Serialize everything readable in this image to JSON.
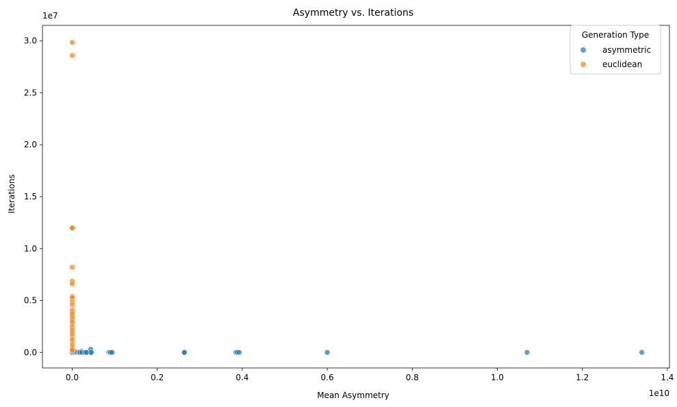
{
  "chart_data": {
    "type": "scatter",
    "title": "Asymmetry vs. Iterations",
    "xlabel": "Mean Asymmetry",
    "ylabel": "Iterations",
    "x_offset_label": "1e10",
    "y_offset_label": "1e7",
    "x_scale": 10000000000,
    "y_scale": 10000000,
    "xlim": [
      -0.07,
      1.405
    ],
    "ylim": [
      -0.15,
      3.15
    ],
    "x_ticks": [
      0.0,
      0.2,
      0.4,
      0.6,
      0.8,
      1.0,
      1.2,
      1.4
    ],
    "x_tick_labels": [
      "0.0",
      "0.2",
      "0.4",
      "0.6",
      "0.8",
      "1.0",
      "1.2",
      "1.4"
    ],
    "y_ticks": [
      0.0,
      0.5,
      1.0,
      1.5,
      2.0,
      2.5,
      3.0
    ],
    "y_tick_labels": [
      "0.0",
      "0.5",
      "1.0",
      "1.5",
      "2.0",
      "2.5",
      "3.0"
    ],
    "grid": false,
    "legend": {
      "title": "Generation Type",
      "position": "top-right"
    },
    "series": [
      {
        "name": "asymmetric",
        "color": "#1f77b4",
        "alpha": 0.7,
        "points": [
          [
            0.0,
            0.0
          ],
          [
            0.003,
            0.01
          ],
          [
            0.006,
            0.0
          ],
          [
            0.009,
            0.005
          ],
          [
            0.013,
            0.0
          ],
          [
            0.017,
            0.0
          ],
          [
            0.022,
            0.01
          ],
          [
            0.028,
            0.0
          ],
          [
            0.035,
            0.0
          ],
          [
            0.04,
            0.005
          ],
          [
            0.046,
            0.0
          ],
          [
            0.018,
            0.0
          ],
          [
            0.023,
            0.0
          ],
          [
            0.03,
            0.0
          ],
          [
            0.034,
            0.0
          ],
          [
            0.0435,
            0.03
          ],
          [
            0.0445,
            0.0
          ],
          [
            0.085,
            0.0
          ],
          [
            0.087,
            0.0
          ],
          [
            0.088,
            0.0
          ],
          [
            0.09,
            0.0
          ],
          [
            0.094,
            0.0
          ],
          [
            0.263,
            0.0
          ],
          [
            0.264,
            0.0
          ],
          [
            0.385,
            0.0
          ],
          [
            0.388,
            0.0
          ],
          [
            0.393,
            0.0
          ],
          [
            0.6,
            0.0
          ],
          [
            1.07,
            0.0
          ],
          [
            1.34,
            0.0
          ]
        ]
      },
      {
        "name": "euclidean",
        "color": "#ff7f0e",
        "alpha": 0.7,
        "points": [
          [
            0.0,
            2.985
          ],
          [
            0.0,
            2.86
          ],
          [
            0.0,
            1.2
          ],
          [
            0.0,
            1.198
          ],
          [
            0.0,
            0.82
          ],
          [
            0.0,
            0.685
          ],
          [
            0.0,
            0.66
          ],
          [
            0.0,
            0.54
          ],
          [
            0.0,
            0.525
          ],
          [
            0.0,
            0.49
          ],
          [
            0.0,
            0.46
          ],
          [
            0.0,
            0.41
          ],
          [
            0.0,
            0.39
          ],
          [
            0.0,
            0.37
          ],
          [
            0.0,
            0.35
          ],
          [
            0.0,
            0.33
          ],
          [
            0.0,
            0.31
          ],
          [
            0.0,
            0.29
          ],
          [
            0.0,
            0.26
          ],
          [
            0.0,
            0.245
          ],
          [
            0.0,
            0.225
          ],
          [
            0.0,
            0.21
          ],
          [
            0.0,
            0.19
          ],
          [
            0.0,
            0.17
          ],
          [
            0.0,
            0.15
          ],
          [
            0.0,
            0.13
          ],
          [
            0.0,
            0.12
          ],
          [
            0.0,
            0.1
          ],
          [
            0.0,
            0.085
          ],
          [
            0.0,
            0.075
          ],
          [
            0.0,
            0.06
          ],
          [
            0.0,
            0.045
          ],
          [
            0.0,
            0.03
          ],
          [
            0.0,
            0.02
          ]
        ]
      }
    ]
  }
}
